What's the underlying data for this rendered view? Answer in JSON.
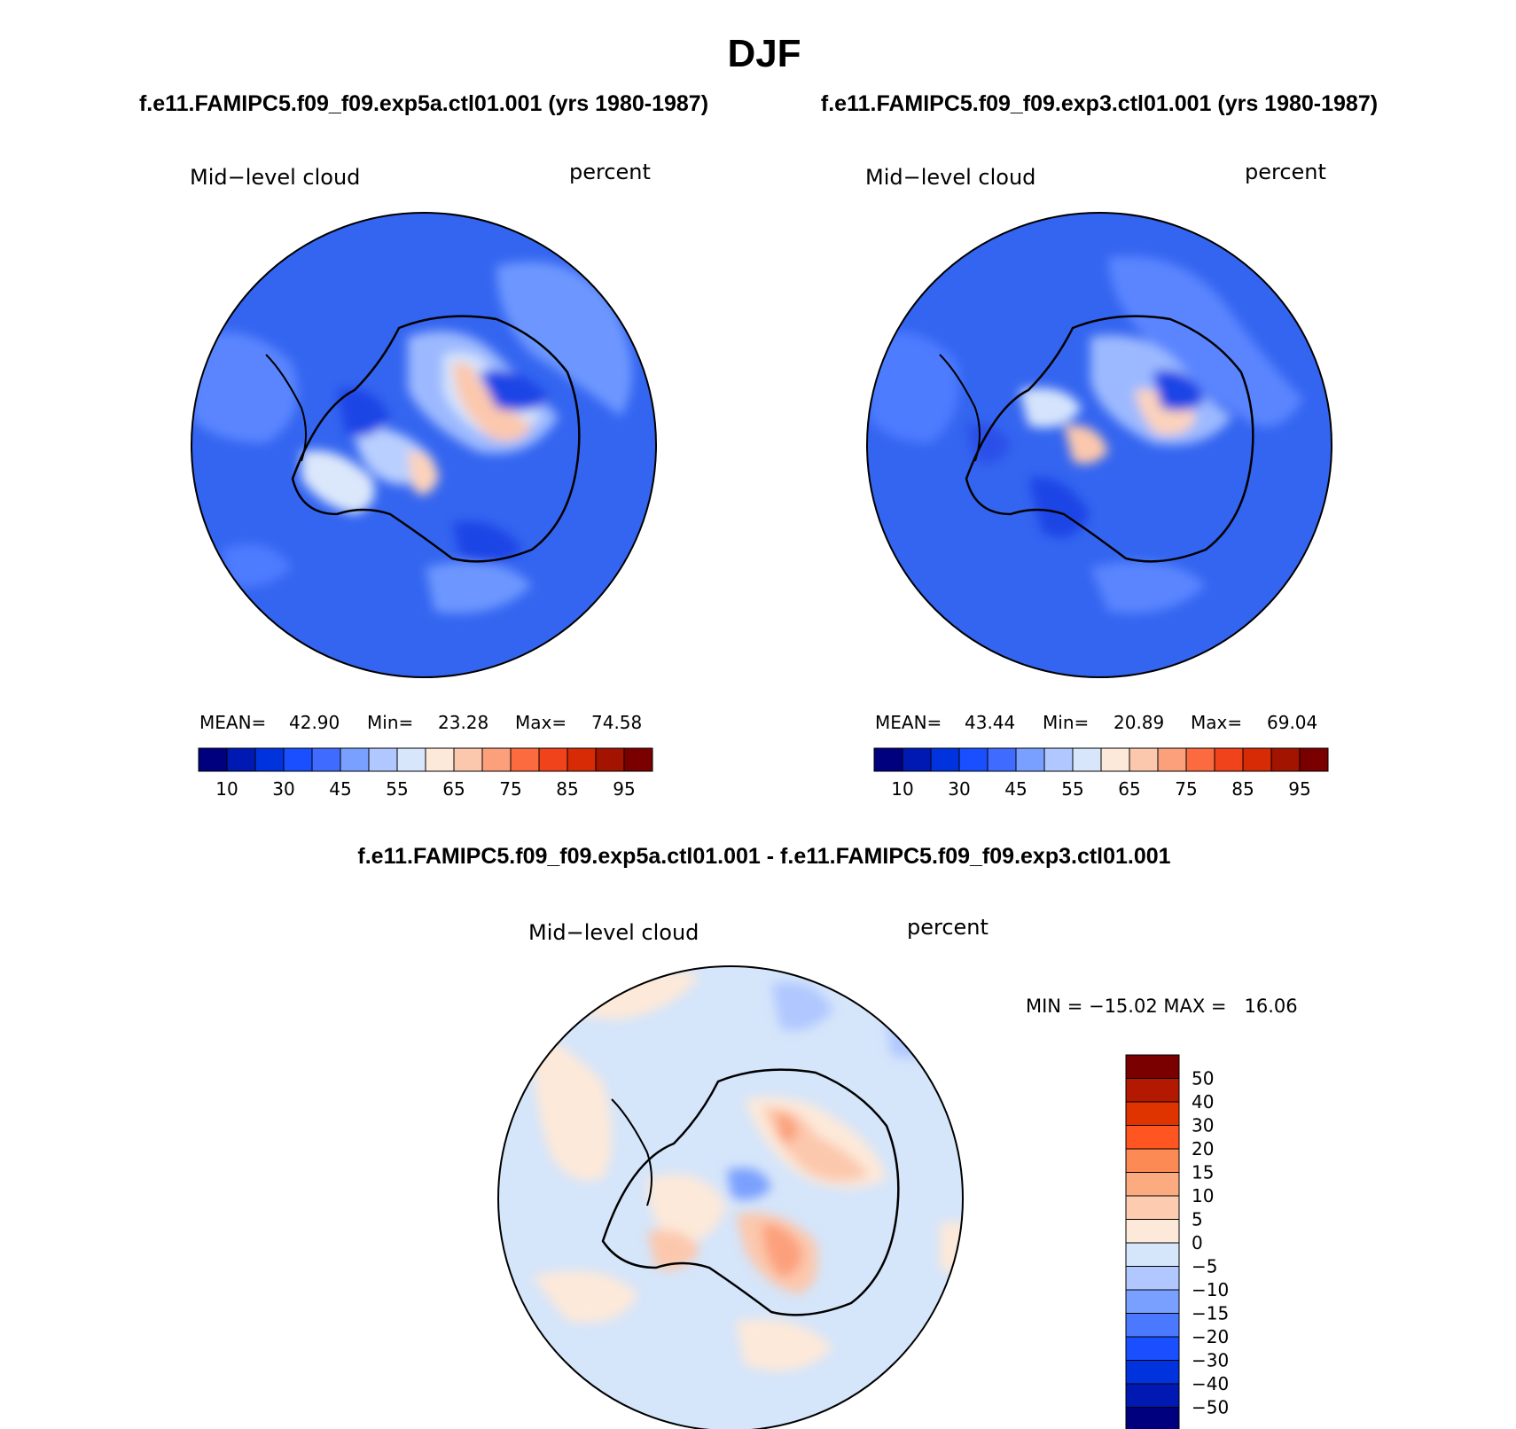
{
  "figure": {
    "title": "DJF",
    "bottom_title": "f.e11.FAMIPC5.f09_f09.exp5a.ctl01.001 - f.e11.FAMIPC5.f09_f09.exp3.ctl01.001"
  },
  "panels": [
    {
      "case_title": "f.e11.FAMIPC5.f09_f09.exp5a.ctl01.001 (yrs 1980-1987)",
      "variable": "Mid−level cloud",
      "units": "percent",
      "stats": {
        "mean_label": "MEAN=",
        "mean": "42.90",
        "min_label": "Min=",
        "min": "23.28",
        "max_label": "Max=",
        "max": "74.58"
      }
    },
    {
      "case_title": "f.e11.FAMIPC5.f09_f09.exp3.ctl01.001 (yrs 1980-1987)",
      "variable": "Mid−level cloud",
      "units": "percent",
      "stats": {
        "mean_label": "MEAN=",
        "mean": "43.44",
        "min_label": "Min=",
        "min": "20.89",
        "max_label": "Max=",
        "max": "69.04"
      }
    },
    {
      "variable": "Mid−level cloud",
      "units": "percent",
      "stats": {
        "text": "MIN = −15.02 MAX =   16.06"
      }
    }
  ],
  "colorbars": {
    "field": {
      "colors": [
        "#00007f",
        "#0019b3",
        "#0033dd",
        "#1a4fff",
        "#3f6cff",
        "#7aa0ff",
        "#b0c8ff",
        "#d7e6fb",
        "#fde9d9",
        "#fcc8ad",
        "#fca07c",
        "#fb6b3f",
        "#f0421b",
        "#d62b05",
        "#a31400",
        "#7a0000"
      ],
      "labels": [
        "10",
        "30",
        "45",
        "55",
        "65",
        "75",
        "85",
        "95"
      ]
    },
    "difference": {
      "colors": [
        "#7a0000",
        "#b21900",
        "#e03400",
        "#ff5520",
        "#fc8a55",
        "#fcaa80",
        "#fccbb0",
        "#fde9d9",
        "#d5e5fa",
        "#b0c8ff",
        "#7aa0ff",
        "#4a78ff",
        "#1a4fff",
        "#0033dd",
        "#0019b3",
        "#00007f"
      ],
      "labels": [
        "50",
        "40",
        "30",
        "20",
        "15",
        "10",
        "5",
        "0",
        "−5",
        "−10",
        "−15",
        "−20",
        "−30",
        "−40",
        "−50"
      ]
    }
  }
}
